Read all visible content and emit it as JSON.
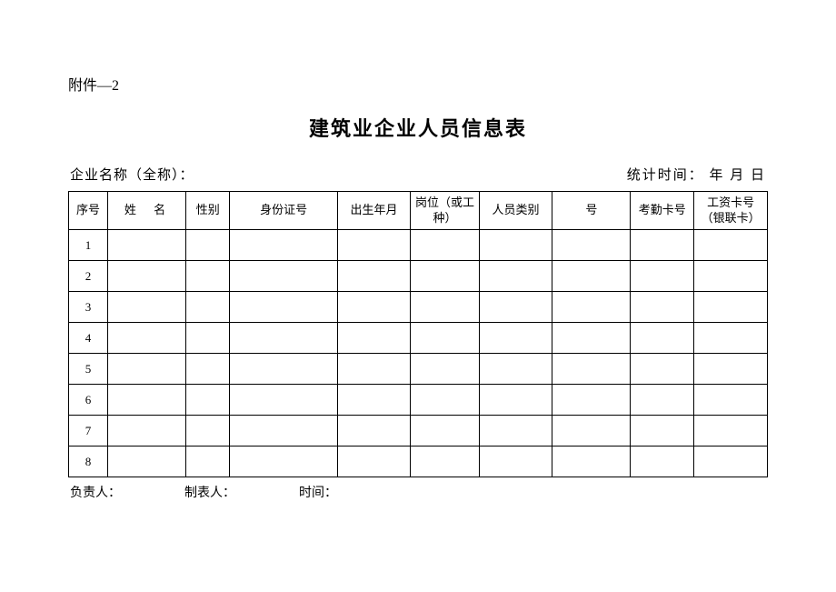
{
  "attachment_label": "附件—2",
  "title": "建筑业企业人员信息表",
  "header": {
    "company_label": "企业名称（全称）：",
    "date_label": "统计时间：   年   月   日"
  },
  "table": {
    "columns": [
      {
        "key": "seq",
        "label": "序号",
        "class": "col-seq"
      },
      {
        "key": "name",
        "label": "姓 名",
        "class": "col-name"
      },
      {
        "key": "gender",
        "label": "性别",
        "class": "col-gender"
      },
      {
        "key": "id",
        "label": "身份证号",
        "class": "col-id"
      },
      {
        "key": "birth",
        "label": "出生年月",
        "class": "col-birth"
      },
      {
        "key": "position",
        "label": "岗位（或工种）",
        "class": "col-position"
      },
      {
        "key": "category",
        "label": "人员类别",
        "class": "col-category"
      },
      {
        "key": "number",
        "label": "号",
        "class": "col-number"
      },
      {
        "key": "attendance",
        "label": "考勤卡号",
        "class": "col-attendance"
      },
      {
        "key": "salary",
        "label": "工资卡号（银联卡）",
        "class": "col-salary"
      }
    ],
    "rows": [
      {
        "seq": "1"
      },
      {
        "seq": "2"
      },
      {
        "seq": "3"
      },
      {
        "seq": "4"
      },
      {
        "seq": "5"
      },
      {
        "seq": "6"
      },
      {
        "seq": "7"
      },
      {
        "seq": "8"
      }
    ]
  },
  "footer": {
    "responsible": "负责人：",
    "preparer": "制表人：",
    "time": "时间："
  }
}
